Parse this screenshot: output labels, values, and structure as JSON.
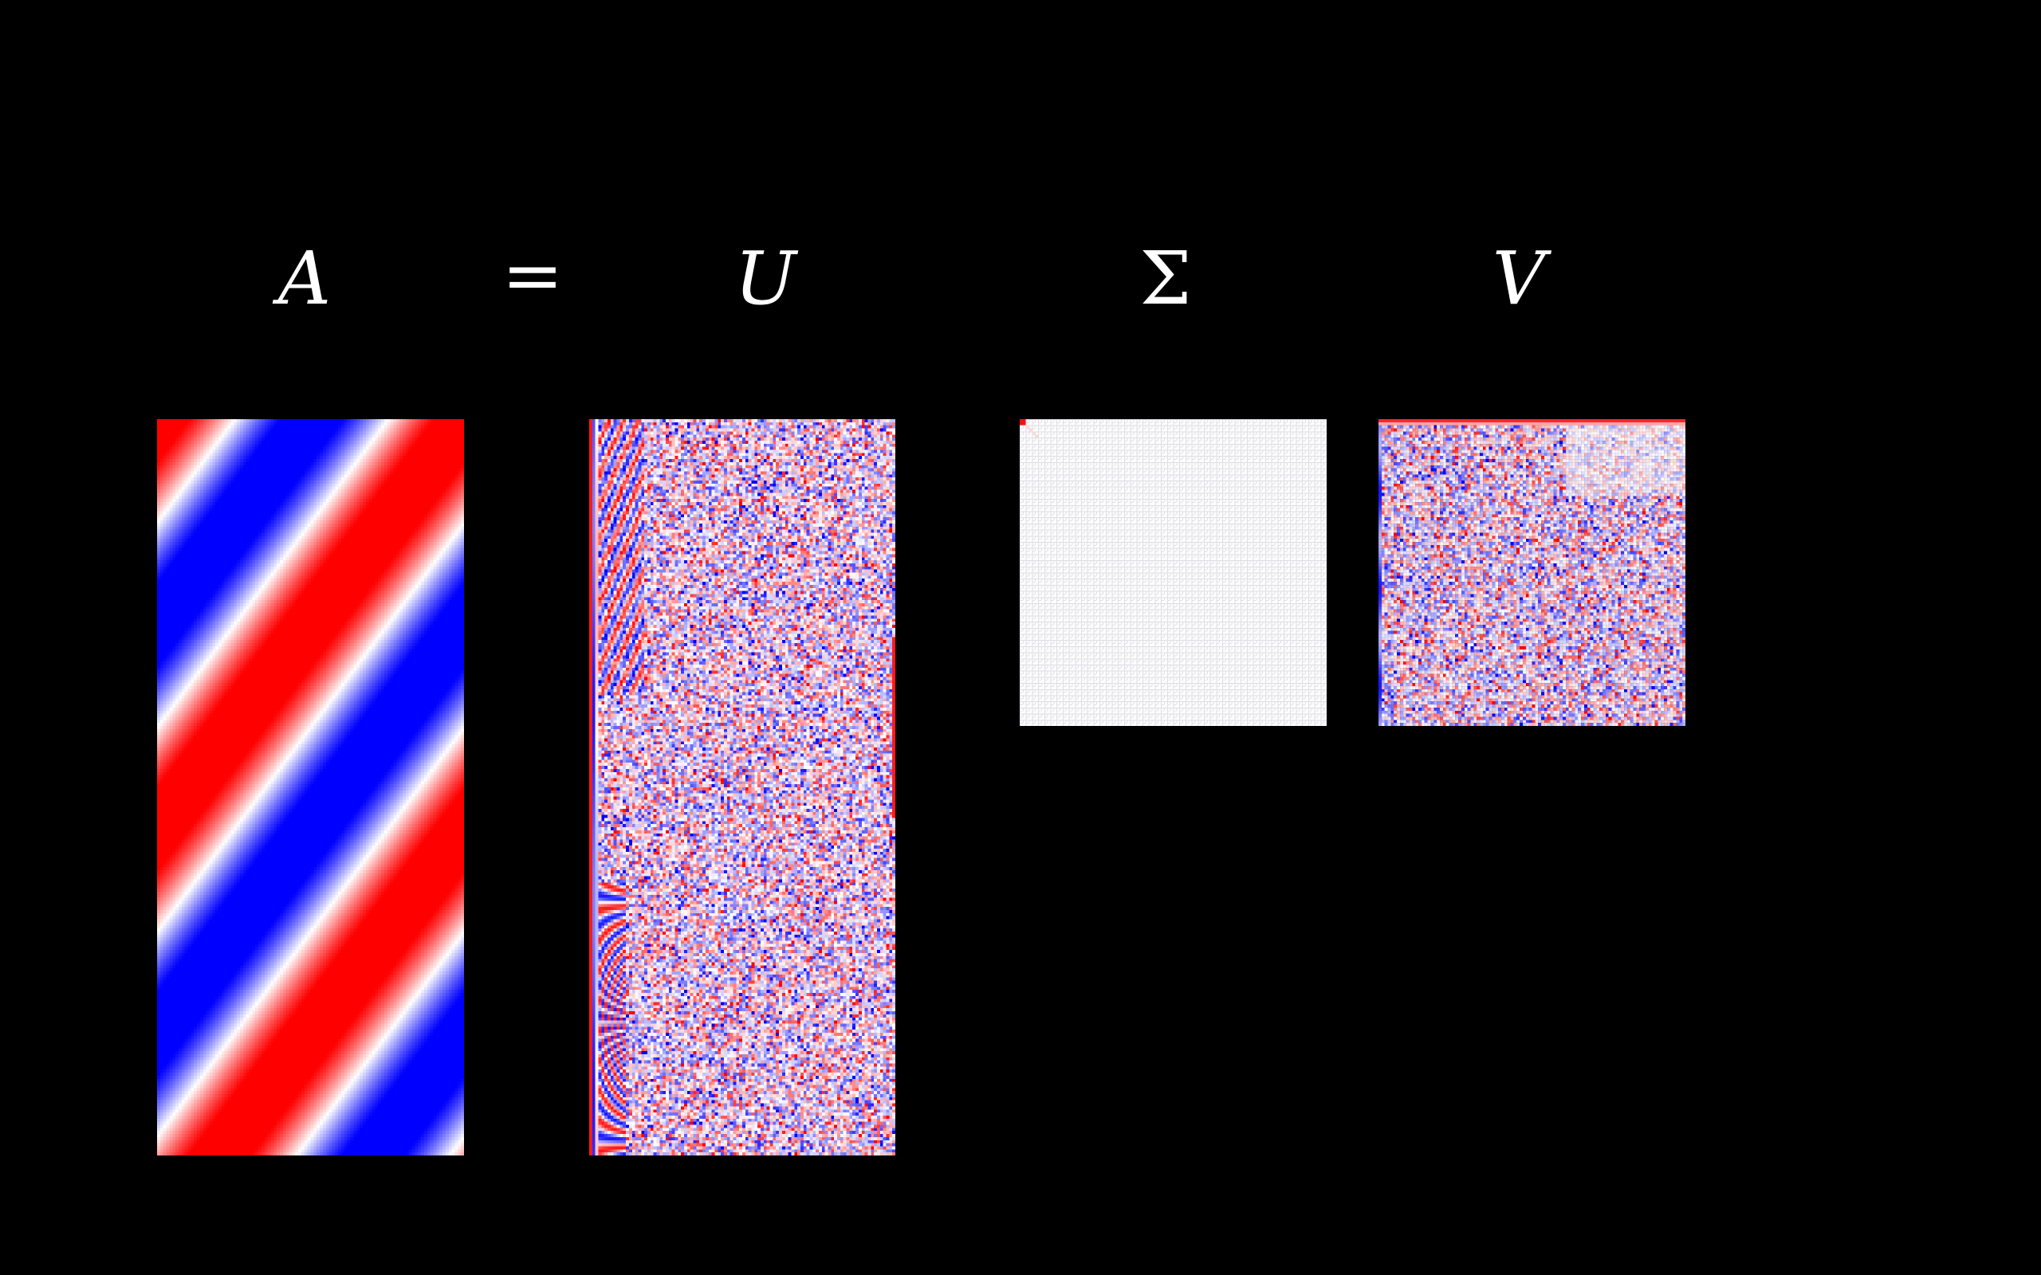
{
  "equation": {
    "a_label": "A",
    "equals_label": "=",
    "u_label": "U",
    "sigma_label": "Σ",
    "v_label": "V"
  },
  "colors": {
    "background": "#000000",
    "positive": "#ff0000",
    "zero": "#ffffff",
    "negative": "#0000ff",
    "label": "#ffffff"
  },
  "matrices": [
    {
      "name": "A",
      "rows": 240,
      "cols": 100,
      "pattern": "diagonal-sinusoid"
    },
    {
      "name": "U",
      "rows": 240,
      "cols": 100,
      "pattern": "left-singular-vectors"
    },
    {
      "name": "Sigma",
      "rows": 100,
      "cols": 100,
      "pattern": "diagonal-singular-values"
    },
    {
      "name": "V",
      "rows": 100,
      "cols": 100,
      "pattern": "right-singular-vectors"
    }
  ]
}
